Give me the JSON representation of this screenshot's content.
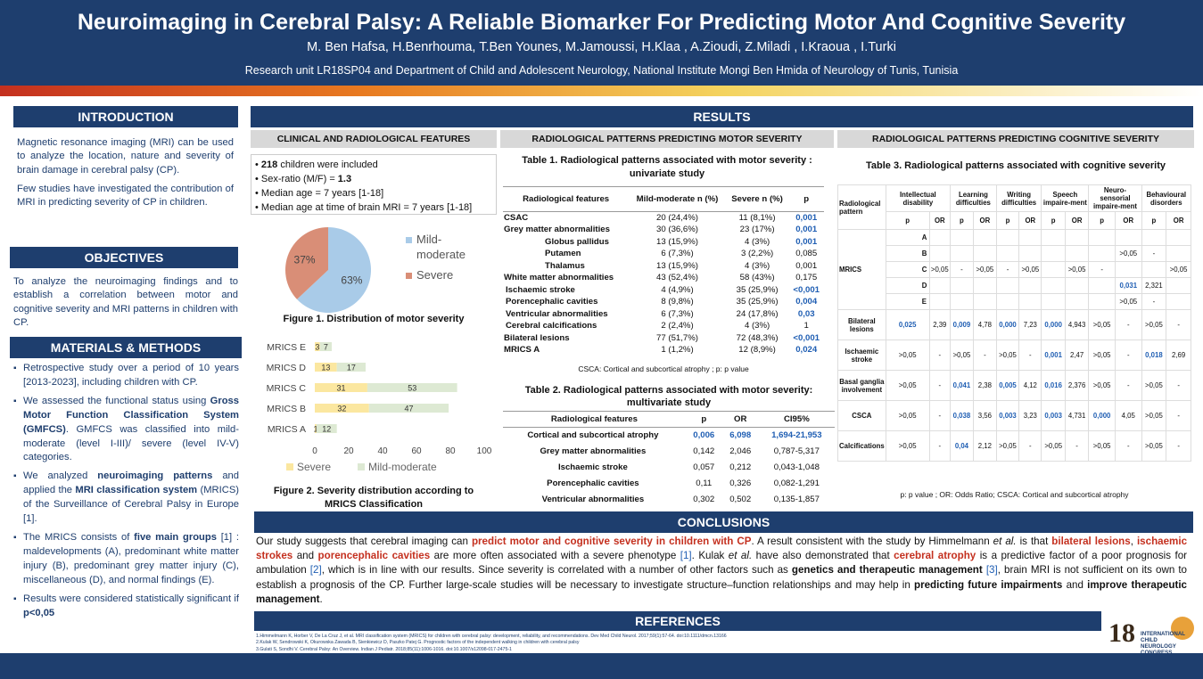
{
  "header": {
    "title": "Neuroimaging in Cerebral Palsy: A Reliable Biomarker For Predicting Motor And Cognitive Severity",
    "authors": "M. Ben Hafsa, H.Benrhouma, T.Ben Younes, M.Jamoussi, H.Klaa , A.Zioudi, Z.Miladi , I.Kraoua , I.Turki",
    "affiliation": "Research unit LR18SP04 and Department of Child and Adolescent Neurology, National Institute Mongi Ben Hmida of Neurology of Tunis, Tunisia"
  },
  "intro": {
    "heading": "INTRODUCTION",
    "p1": "Magnetic resonance imaging (MRI) can be used to analyze the location, nature and severity of brain damage in cerebral palsy (CP).",
    "p2": "Few studies have investigated the contribution of MRI in predicting severity of CP in children."
  },
  "objectives": {
    "heading": "OBJECTIVES",
    "text": "To analyze the neuroimaging findings and to establish a correlation between motor and cognitive severity and MRI patterns in children with CP."
  },
  "methods": {
    "heading": "MATERIALS & METHODS",
    "b1": "Retrospective study over a period of 10 years [2013-2023], including children with CP.",
    "b2a": "We assessed the functional status using ",
    "b2b": "Gross Motor Function Classification System (GMFCS)",
    "b2c": ". GMFCS was classified into mild-moderate (level I-III)/ severe (level IV-V) categories.",
    "b3a": "We analyzed ",
    "b3b": "neuroimaging patterns",
    "b3c": " and applied the ",
    "b3d": "MRI classification system",
    "b3e": " (MRICS) of the Surveillance of Cerebral Palsy in Europe [1].",
    "b4a": "The MRICS consists of ",
    "b4b": "five main groups",
    "b4c": " [1] : maldevelopments (A), predominant white matter injury (B), predominant grey matter injury (C), miscellaneous (D), and normal findings (E).",
    "b5a": "Results were considered statistically significant if ",
    "b5b": "p<0,05"
  },
  "results": {
    "heading": "RESULTS",
    "clin_heading": "CLINICAL AND RADIOLOGICAL FEATURES",
    "motor_heading": "RADIOLOGICAL PATTERNS PREDICTING MOTOR SEVERITY",
    "cog_heading": "RADIOLOGICAL PATTERNS PREDICTING COGNITIVE SEVERITY",
    "facts": [
      {
        "b": "218",
        "t": " children were included"
      },
      {
        "b": "",
        "t": "Sex-ratio (M/F) = "
      },
      {
        "b": "",
        "t": "Median age  = 7 years [1-18]"
      },
      {
        "b": "",
        "t": "Median age at time of brain MRI = 7 years [1-18]"
      }
    ],
    "sexratio": "1.3",
    "fig1": "Figure 1. Distribution of motor severity",
    "fig2": "Figure 2. Severity distribution according to MRICS Classification"
  },
  "pie": {
    "slices": [
      {
        "label": "Mild-moderate",
        "pct": "63%",
        "value": 63,
        "color": "#a9cbe8"
      },
      {
        "label": "Severe",
        "pct": "37%",
        "value": 37,
        "color": "#d98e77"
      }
    ]
  },
  "chart_data": {
    "type": "bar",
    "categories": [
      "MRICS E",
      "MRICS D",
      "MRICS C",
      "MRICS B",
      "MRICS A"
    ],
    "series": [
      {
        "name": "Severe",
        "values": [
          3,
          13,
          31,
          32,
          1
        ],
        "color": "#fbe7a0"
      },
      {
        "name": "Mild-moderate",
        "values": [
          7,
          17,
          53,
          47,
          12
        ],
        "color": "#dde9d3"
      }
    ],
    "xlim": [
      0,
      100
    ],
    "xticks": [
      "0",
      "20",
      "40",
      "60",
      "80",
      "100"
    ]
  },
  "table1": {
    "title": "Table 1. Radiological patterns associated with motor severity : univariate study",
    "cols": [
      "Radiological features",
      "Mild-moderate n (%)",
      "Severe n (%)",
      "p"
    ],
    "rows": [
      [
        "CSAC",
        "20 (24,4%)",
        "11 (8,1%)",
        "0,001"
      ],
      [
        "Grey matter abnormalities",
        "30 (36,6%)",
        "23 (17%)",
        "0,001"
      ],
      [
        "Globus pallidus",
        "13 (15,9%)",
        "4 (3%)",
        "0,001"
      ],
      [
        "Putamen",
        "6 (7,3%)",
        "3 (2,2%)",
        "0,085"
      ],
      [
        "Thalamus",
        "13 (15,9%)",
        "4 (3%)",
        "0,001"
      ],
      [
        "White matter abnormalities",
        "43 (52,4%)",
        "58 (43%)",
        "0,175"
      ],
      [
        "Ischaemic stroke",
        "4 (4,9%)",
        "35 (25,9%)",
        "<0,001"
      ],
      [
        "Porencephalic cavities",
        "8 (9,8%)",
        "35 (25,9%)",
        "0,004"
      ],
      [
        "Ventricular abnormalities",
        "6 (7,3%)",
        "24 (17,8%)",
        "0,03"
      ],
      [
        "Cerebral calcifications",
        "2 (2,4%)",
        "4 (3%)",
        "1"
      ],
      [
        "Bilateral lesions",
        "77 (51,7%)",
        "72 (48,3%)",
        "<0,001"
      ],
      [
        "MRICS A",
        "1 (1,2%)",
        "12 (8,9%)",
        "0,024"
      ]
    ],
    "note": "CSCA: Cortical and subcortical atrophy ; p: p value"
  },
  "table2": {
    "title": "Table 2. Radiological patterns associated with motor severity: multivariate study",
    "cols": [
      "Radiological features",
      "p",
      "OR",
      "CI95%"
    ],
    "rows": [
      [
        "Cortical and subcortical atrophy",
        "0,006",
        "6,098",
        "1,694-21,953"
      ],
      [
        "Grey matter abnormalities",
        "0,142",
        "2,046",
        "0,787-5,317"
      ],
      [
        "Ischaemic stroke",
        "0,057",
        "0,212",
        "0,043-1,048"
      ],
      [
        "Porencephalic cavities",
        "0,11",
        "0,326",
        "0,082-1,291"
      ],
      [
        "Ventricular abnormalities",
        "0,302",
        "0,502",
        "0,135-1,857"
      ]
    ]
  },
  "table3": {
    "title": "Table 3. Radiological patterns associated with cognitive severity",
    "head": [
      "Radiological pattern",
      "Intellectual disability",
      "Learning difficulties",
      "Writing difficulties",
      "Speech impaire-ment",
      "Neuro-sensorial impaire-ment",
      "Behavioural disorders"
    ],
    "sub": [
      "p",
      "OR"
    ],
    "mrics": {
      "label": "MRICS",
      "letters": [
        "A",
        "B",
        "C",
        "D",
        "E"
      ]
    },
    "rows": [
      [
        "Bilateral lesions",
        "0,025",
        "2,39",
        "0,009",
        "4,78",
        "0,000",
        "7,23",
        "0,000",
        "4,943",
        ">0,05",
        "-",
        ">0,05",
        "-"
      ],
      [
        "Ischaemic stroke",
        ">0,05",
        "-",
        ">0,05",
        "-",
        ">0,05",
        "-",
        "0,001",
        "2,47",
        ">0,05",
        "-",
        "0,018",
        "2,69"
      ],
      [
        "Basal ganglia involvement",
        ">0,05",
        "-",
        "0,041",
        "2,38",
        "0,005",
        "4,12",
        "0,016",
        "2,376",
        ">0,05",
        "-",
        ">0,05",
        "-"
      ],
      [
        "CSCA",
        ">0,05",
        "-",
        "0,038",
        "3,56",
        "0,003",
        "3,23",
        "0,003",
        "4,731",
        "0,000",
        "4,05",
        ">0,05",
        "-"
      ],
      [
        "Calcifications",
        ">0,05",
        "-",
        "0,04",
        "2,12",
        ">0,05",
        "-",
        ">0,05",
        "-",
        ">0,05",
        "-",
        ">0,05",
        "-"
      ]
    ],
    "note": "p: p value ; OR: Odds Ratio; CSCA: Cortical and subcortical atrophy"
  },
  "conclusions": {
    "heading": "CONCLUSIONS",
    "s1": "Our study suggests that cerebral imaging can ",
    "r1": "predict motor and cognitive severity in children with CP",
    "s2": ". A result consistent with the study by Himmelmann ",
    "i1": "et al.",
    "s3": " is that ",
    "r2": "bilateral lesions",
    "s4": ", ",
    "r3": "ischaemic strokes",
    "s5": " and ",
    "r4": "porencephalic cavities",
    "s6": " are more often associated with a severe phenotype ",
    "c1": "[1]",
    "s7": ". Kulak ",
    "i2": "et al.",
    "s8": " have also demonstrated that ",
    "r5": "cerebral atrophy",
    "s9": " is a predictive factor of a poor prognosis for ambulation ",
    "c2": "[2]",
    "s10": ", which is in line with our results. Since severity is correlated with a number of other factors such as ",
    "b1": "genetics and therapeutic management",
    "s11": " ",
    "c3": "[3]",
    "s12": ", brain MRI is not sufficient on its own to establish a prognosis of the CP. Further large-scale studies will be necessary to investigate structure–function relationships and may help in ",
    "b2": "predicting future impairments",
    "s13": " and ",
    "b3": "improve therapeutic management",
    "s14": "."
  },
  "references": {
    "heading": "REFERENCES",
    "r1": "1.Himmelmann K, Horber V, De La Cruz J, et al. MRI classification system (MRICS) for children with cerebral palsy: development, reliability, and recommendations. Dev Med Child Neurol. 2017;59(1):57-64. doi:10.1111/dmcn.13166",
    "r2": "2.Kulak W, Sendrowski K, Okurowska Zawada B, Sienkiewicz D, Paszko Patej G. Prognostic factors of the independent walking in children with cerebral palsy",
    "r3": "3.Gulati S, Sondhi V. Cerebral Palsy: An Overview. Indian J Pediatr. 2018;85(11):1006-1016. doi:10.1007/s12098-017-2475-1"
  },
  "logo": {
    "number": "18",
    "line1": "INTERNATIONAL CHILD",
    "line2": "NEUROLOGY CONGRESS"
  }
}
